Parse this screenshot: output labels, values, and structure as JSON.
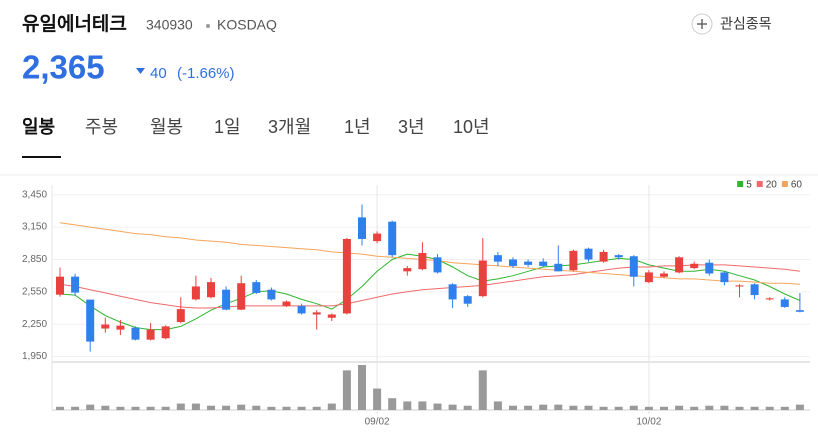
{
  "header": {
    "name": "유일에너테크",
    "code": "340930",
    "market": "KOSDAQ",
    "price": "2,365",
    "change": "40",
    "change_pct": "(-1.66%)",
    "watch": "관심종목"
  },
  "tabs": [
    "일봉",
    "주봉",
    "월봉",
    "1일",
    "3개월",
    "1년",
    "3년",
    "10년"
  ],
  "chart_data": {
    "type": "candlestick",
    "categories": [
      null,
      null,
      null,
      null,
      null,
      null,
      null,
      null,
      null,
      null,
      null,
      null,
      null,
      null,
      null,
      null,
      null,
      null,
      null,
      null,
      null,
      "09/02",
      null,
      null,
      null,
      null,
      null,
      null,
      null,
      null,
      null,
      null,
      null,
      null,
      null,
      null,
      null,
      null,
      null,
      "10/02",
      null,
      null,
      null,
      null,
      null,
      null,
      null,
      null,
      null,
      null
    ],
    "open": [
      2524,
      2691,
      2478,
      2210,
      2200,
      2218,
      2107,
      2120,
      2270,
      2480,
      2500,
      2570,
      2385,
      2640,
      2570,
      2420,
      2420,
      2340,
      2310,
      2350,
      3240,
      3020,
      3200,
      2740,
      2760,
      2870,
      2620,
      2510,
      2510,
      2890,
      2850,
      2830,
      2830,
      2810,
      2750,
      2950,
      2830,
      2890,
      2880,
      2640,
      2690,
      2730,
      2770,
      2820,
      2730,
      2600,
      2620,
      2480,
      2480,
      2380
    ],
    "high": [
      2774,
      2718,
      2478,
      2311,
      2290,
      2230,
      2260,
      2240,
      2500,
      2700,
      2680,
      2600,
      2700,
      2660,
      2590,
      2470,
      2440,
      2380,
      2350,
      3050,
      3360,
      3110,
      3210,
      2790,
      3010,
      2900,
      2630,
      2520,
      3050,
      2920,
      2870,
      2850,
      2860,
      2980,
      2940,
      2960,
      2940,
      2900,
      2890,
      2750,
      2740,
      2880,
      2830,
      2850,
      2740,
      2620,
      2630,
      2500,
      2500,
      2540
    ],
    "low": [
      2506,
      2515,
      1996,
      2172,
      2150,
      2100,
      2100,
      2110,
      2260,
      2470,
      2490,
      2380,
      2380,
      2530,
      2470,
      2410,
      2340,
      2200,
      2280,
      2340,
      2980,
      3000,
      2870,
      2700,
      2750,
      2720,
      2400,
      2410,
      2500,
      2790,
      2770,
      2780,
      2780,
      2740,
      2740,
      2830,
      2820,
      2850,
      2600,
      2630,
      2680,
      2720,
      2760,
      2700,
      2610,
      2500,
      2480,
      2470,
      2400,
      2360
    ],
    "close": [
      2691,
      2543,
      2089,
      2247,
      2237,
      2107,
      2200,
      2230,
      2390,
      2600,
      2640,
      2385,
      2630,
      2540,
      2480,
      2460,
      2350,
      2360,
      2340,
      3040,
      3040,
      3090,
      2890,
      2770,
      2910,
      2730,
      2480,
      2440,
      2840,
      2830,
      2790,
      2800,
      2790,
      2740,
      2930,
      2850,
      2920,
      2870,
      2690,
      2730,
      2720,
      2870,
      2810,
      2720,
      2640,
      2610,
      2520,
      2490,
      2410,
      2365
    ],
    "up_color": "#e8413e",
    "down_color": "#2f80ed",
    "volume": [
      3,
      3,
      5,
      4,
      3,
      3,
      3,
      3,
      6,
      6,
      4,
      4,
      5,
      4,
      3,
      3,
      3,
      3,
      6,
      37,
      42,
      20,
      11,
      8,
      8,
      6,
      5,
      4,
      37,
      8,
      4,
      4,
      5,
      5,
      4,
      4,
      3,
      3,
      4,
      3,
      3,
      4,
      3,
      4,
      4,
      3,
      3,
      3,
      3,
      5
    ],
    "volume_color": "#999999",
    "series": [
      {
        "name": "5",
        "color": "#2fb52f",
        "values": [
          2530,
          2520,
          2420,
          2330,
          2270,
          2220,
          2200,
          2200,
          2230,
          2300,
          2380,
          2440,
          2490,
          2550,
          2560,
          2530,
          2480,
          2440,
          2390,
          2480,
          2600,
          2740,
          2850,
          2900,
          2880,
          2850,
          2780,
          2700,
          2650,
          2670,
          2700,
          2740,
          2780,
          2790,
          2800,
          2820,
          2840,
          2860,
          2850,
          2800,
          2770,
          2740,
          2740,
          2760,
          2740,
          2700,
          2660,
          2600,
          2530,
          2470
        ]
      },
      {
        "name": "20",
        "color": "#f06a6a",
        "values": [
          2620,
          2600,
          2570,
          2540,
          2510,
          2480,
          2450,
          2430,
          2410,
          2400,
          2400,
          2410,
          2420,
          2420,
          2420,
          2420,
          2420,
          2420,
          2420,
          2440,
          2470,
          2500,
          2530,
          2550,
          2570,
          2580,
          2590,
          2600,
          2610,
          2630,
          2650,
          2670,
          2690,
          2700,
          2710,
          2730,
          2750,
          2770,
          2780,
          2780,
          2790,
          2790,
          2800,
          2800,
          2800,
          2790,
          2780,
          2770,
          2760,
          2740
        ]
      },
      {
        "name": "60",
        "color": "#f5a55a",
        "values": [
          3190,
          3170,
          3150,
          3130,
          3110,
          3090,
          3080,
          3060,
          3050,
          3030,
          3020,
          3010,
          2990,
          2980,
          2970,
          2960,
          2950,
          2940,
          2920,
          2910,
          2900,
          2880,
          2870,
          2860,
          2850,
          2840,
          2820,
          2810,
          2800,
          2790,
          2780,
          2770,
          2760,
          2750,
          2740,
          2730,
          2720,
          2710,
          2700,
          2690,
          2680,
          2670,
          2670,
          2660,
          2650,
          2650,
          2640,
          2630,
          2630,
          2620
        ]
      }
    ],
    "ylim": [
      1900,
      3540
    ],
    "yticks": [
      {
        "value": 1950,
        "label": "1,950"
      },
      {
        "value": 2250,
        "label": "2,250"
      },
      {
        "value": 2550,
        "label": "2,550"
      },
      {
        "value": 2850,
        "label": "2,850"
      },
      {
        "value": 3150,
        "label": "3,150"
      },
      {
        "value": 3450,
        "label": "3,450"
      }
    ],
    "grid": true,
    "legend": "top-right"
  }
}
